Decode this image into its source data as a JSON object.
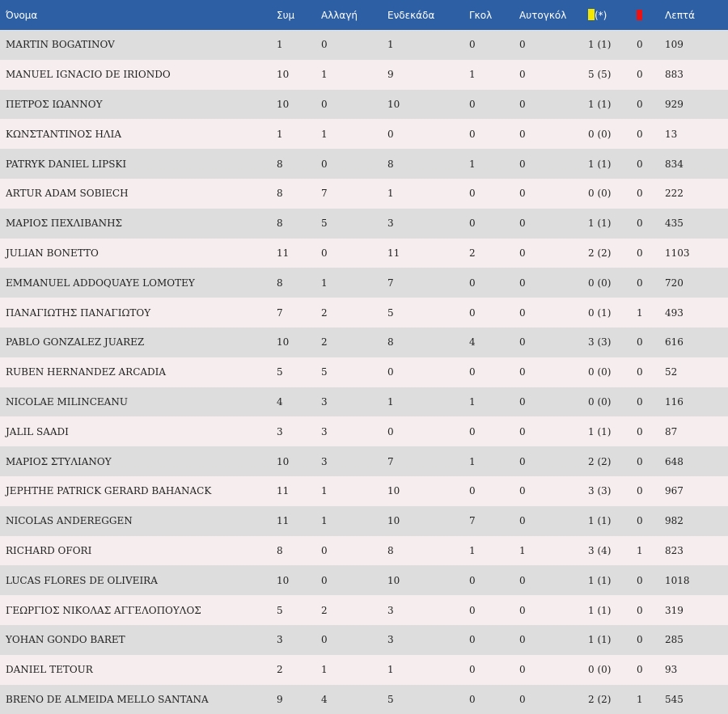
{
  "colors": {
    "header_bg": "#2d5fa5",
    "row_odd": "#dddddd",
    "row_even": "#f6eeee",
    "yellow_card": "#f5e600",
    "red_card": "#ee1111"
  },
  "headers": {
    "name": "Όνομα",
    "appearances": "Συμ",
    "substitute": "Αλλαγή",
    "starting": "Ενδεκάδα",
    "goals": "Γκολ",
    "own_goals": "Αυτογκόλ",
    "yellow_suffix": "(*)",
    "yellow_icon": "yellow-card-icon",
    "red_icon": "red-card-icon",
    "minutes": "Λεπτά"
  },
  "rows": [
    [
      "MARTIN BOGATINOV",
      "1",
      "0",
      "1",
      "0",
      "0",
      "1 (1)",
      "0",
      "109"
    ],
    [
      "MANUEL IGNACIO DE IRIONDO",
      "10",
      "1",
      "9",
      "1",
      "0",
      "5 (5)",
      "0",
      "883"
    ],
    [
      "ΠΕΤΡΟΣ ΙΩΑΝΝΟΥ",
      "10",
      "0",
      "10",
      "0",
      "0",
      "1 (1)",
      "0",
      "929"
    ],
    [
      "ΚΩΝΣΤΑΝΤΙΝΟΣ ΗΛΙΑ",
      "1",
      "1",
      "0",
      "0",
      "0",
      "0 (0)",
      "0",
      "13"
    ],
    [
      "PATRYK DANIEL LIPSKI",
      "8",
      "0",
      "8",
      "1",
      "0",
      "1 (1)",
      "0",
      "834"
    ],
    [
      "ARTUR ADAM SOBIECH",
      "8",
      "7",
      "1",
      "0",
      "0",
      "0 (0)",
      "0",
      "222"
    ],
    [
      "ΜΑΡΙΟΣ ΠΕΧΛΙΒΑΝΗΣ",
      "8",
      "5",
      "3",
      "0",
      "0",
      "1 (1)",
      "0",
      "435"
    ],
    [
      "JULIAN BONETTO",
      "11",
      "0",
      "11",
      "2",
      "0",
      "2 (2)",
      "0",
      "1103"
    ],
    [
      "EMMANUEL ADDOQUAYE LOMOTEY",
      "8",
      "1",
      "7",
      "0",
      "0",
      "0 (0)",
      "0",
      "720"
    ],
    [
      "ΠΑΝΑΓΙΩΤΗΣ ΠΑΝΑΓΙΩΤΟΥ",
      "7",
      "2",
      "5",
      "0",
      "0",
      "0 (1)",
      "1",
      "493"
    ],
    [
      "PABLO GONZALEZ JUAREZ",
      "10",
      "2",
      "8",
      "4",
      "0",
      "3 (3)",
      "0",
      "616"
    ],
    [
      "RUBEN HERNANDEZ ARCADIA",
      "5",
      "5",
      "0",
      "0",
      "0",
      "0 (0)",
      "0",
      "52"
    ],
    [
      "NICOLAE MILINCEANU",
      "4",
      "3",
      "1",
      "1",
      "0",
      "0 (0)",
      "0",
      "116"
    ],
    [
      "JALIL SAADI",
      "3",
      "3",
      "0",
      "0",
      "0",
      "1 (1)",
      "0",
      "87"
    ],
    [
      "ΜΑΡΙΟΣ ΣΤΥΛΙΑΝΟΥ",
      "10",
      "3",
      "7",
      "1",
      "0",
      "2 (2)",
      "0",
      "648"
    ],
    [
      "JEPHTHE PATRICK GERARD BAHANACK",
      "11",
      "1",
      "10",
      "0",
      "0",
      "3 (3)",
      "0",
      "967"
    ],
    [
      "NICOLAS ANDEREGGEN",
      "11",
      "1",
      "10",
      "7",
      "0",
      "1 (1)",
      "0",
      "982"
    ],
    [
      "RICHARD OFORI",
      "8",
      "0",
      "8",
      "1",
      "1",
      "3 (4)",
      "1",
      "823"
    ],
    [
      "LUCAS FLORES DE OLIVEIRA",
      "10",
      "0",
      "10",
      "0",
      "0",
      "1 (1)",
      "0",
      "1018"
    ],
    [
      "ΓΕΩΡΓΙΟΣ ΝΙΚΟΛΑΣ ΑΓΓΕΛΟΠΟΥΛΟΣ",
      "5",
      "2",
      "3",
      "0",
      "0",
      "1 (1)",
      "0",
      "319"
    ],
    [
      "YOHAN GONDO BARET",
      "3",
      "0",
      "3",
      "0",
      "0",
      "1 (1)",
      "0",
      "285"
    ],
    [
      "DANIEL TETOUR",
      "2",
      "1",
      "1",
      "0",
      "0",
      "0 (0)",
      "0",
      "93"
    ],
    [
      "BRENO DE ALMEIDA MELLO SANTANA",
      "9",
      "4",
      "5",
      "0",
      "0",
      "2 (2)",
      "1",
      "545"
    ]
  ]
}
